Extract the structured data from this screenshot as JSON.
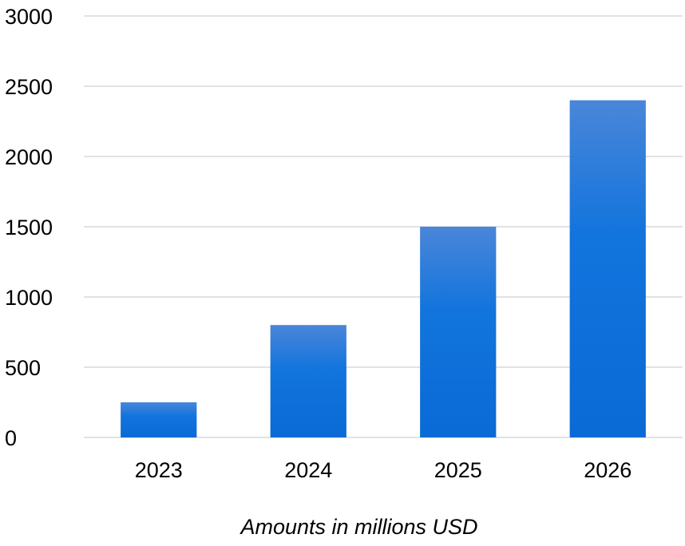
{
  "chart_data": {
    "type": "bar",
    "categories": [
      "2023",
      "2024",
      "2025",
      "2026"
    ],
    "values": [
      250,
      800,
      1500,
      2400
    ],
    "yticks": [
      0,
      500,
      1000,
      1500,
      2000,
      2500,
      3000
    ],
    "ylim": [
      0,
      3000
    ],
    "xlabel": "Amounts in millions USD",
    "grid": true,
    "legend": "none",
    "bar_color_top": "#4a86d9",
    "bar_color_bottom": "#0a6ad6",
    "grid_color": "#d9d9d9"
  }
}
